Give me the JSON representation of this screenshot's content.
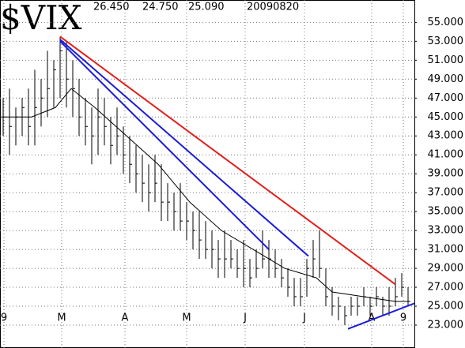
{
  "chart_data": {
    "type": "ohlc",
    "title": "$VIX",
    "header_values": [
      "26.450",
      "24.750",
      "25.090",
      "20090820"
    ],
    "xlim": [
      0,
      131
    ],
    "ylim": [
      22,
      57.2
    ],
    "xticks": [
      {
        "value": 1.25,
        "label": "9"
      },
      {
        "value": 19.5,
        "label": "M"
      },
      {
        "value": 39.5,
        "label": "A"
      },
      {
        "value": 59,
        "label": "M"
      },
      {
        "value": 77.5,
        "label": "J"
      },
      {
        "value": 96.25,
        "label": "J"
      },
      {
        "value": 117.5,
        "label": "A"
      },
      {
        "value": 127.5,
        "label": "9"
      }
    ],
    "yticks": [
      {
        "value": 23,
        "label": "23.000"
      },
      {
        "value": 25,
        "label": "25.000"
      },
      {
        "value": 27,
        "label": "27.000"
      },
      {
        "value": 29,
        "label": "29.000"
      },
      {
        "value": 31,
        "label": "31.000"
      },
      {
        "value": 33,
        "label": "33.000"
      },
      {
        "value": 35,
        "label": "35.000"
      },
      {
        "value": 37,
        "label": "37.000"
      },
      {
        "value": 39,
        "label": "39.000"
      },
      {
        "value": 41,
        "label": "41.000"
      },
      {
        "value": 43,
        "label": "43.000"
      },
      {
        "value": 45,
        "label": "45.000"
      },
      {
        "value": 47,
        "label": "47.000"
      },
      {
        "value": 49,
        "label": "49.000"
      },
      {
        "value": 51,
        "label": "51.000"
      },
      {
        "value": 53,
        "label": "53.000"
      },
      {
        "value": 55,
        "label": "55.000"
      }
    ],
    "grid": true,
    "bar_color": "#000000",
    "bars": {
      "x": [
        1,
        3,
        5,
        7,
        9,
        11,
        13,
        15,
        17,
        19,
        21,
        23,
        25,
        27,
        29,
        31,
        33,
        35,
        37,
        39,
        41,
        43,
        45,
        47,
        49,
        51,
        53,
        55,
        57,
        59,
        61,
        63,
        65,
        67,
        69,
        71,
        73,
        75,
        77,
        79,
        81,
        83,
        85,
        87,
        89,
        91,
        93,
        95,
        97,
        99,
        101,
        103,
        105,
        107,
        109,
        111,
        113,
        115,
        117,
        119,
        121,
        123,
        125,
        127,
        129
      ],
      "high": [
        47,
        48,
        46,
        47,
        48,
        50,
        49,
        52,
        51,
        53.5,
        53,
        51,
        49,
        47,
        46,
        48,
        47,
        45,
        46,
        44,
        43,
        42,
        41,
        40,
        41,
        40,
        38,
        37,
        38,
        36,
        35,
        35,
        34,
        33,
        32,
        33,
        32,
        31,
        32,
        30,
        31,
        33,
        32,
        31,
        30,
        29,
        28,
        28,
        30,
        32,
        33,
        29,
        27,
        26,
        25,
        26,
        26,
        27,
        26,
        27,
        26,
        27,
        28,
        28.5,
        27
      ],
      "low": [
        43,
        41,
        42,
        43,
        42,
        42,
        44,
        45,
        46,
        47,
        46,
        45,
        43,
        42,
        40,
        41,
        42,
        40,
        41,
        39,
        38,
        37,
        36,
        35,
        36,
        34,
        34,
        33,
        33,
        32,
        31,
        30,
        30,
        29,
        28,
        28,
        29,
        28,
        27,
        27,
        28,
        29,
        28,
        28,
        27,
        26,
        25,
        25,
        26,
        28,
        28,
        25,
        24,
        23.5,
        23,
        24,
        24,
        25,
        24,
        25,
        24,
        24,
        25,
        26,
        25
      ],
      "close": [
        45,
        44,
        45,
        46,
        44,
        46,
        47,
        48,
        50,
        52,
        49,
        48,
        45,
        44,
        43,
        45,
        44,
        42,
        43,
        41,
        40,
        39,
        38,
        37,
        38,
        36,
        36,
        35,
        34,
        34,
        33,
        32,
        31,
        31,
        30,
        30,
        30,
        29,
        29,
        28,
        29,
        30,
        30,
        29,
        28,
        27,
        26,
        26,
        29,
        30,
        29,
        26,
        25,
        25,
        24,
        25,
        25,
        26,
        25,
        26,
        25,
        25,
        26,
        27,
        25.5
      ]
    },
    "moving_average": {
      "color": "#000000",
      "x": [
        0,
        10,
        17.5,
        22.5,
        30,
        40,
        50,
        60,
        70,
        80,
        90,
        100,
        105,
        115,
        125,
        129
      ],
      "values": [
        45,
        45,
        46,
        48,
        46,
        43,
        40,
        36,
        33,
        31,
        29,
        28,
        26.5,
        26,
        25.5,
        25.5
      ]
    },
    "trendlines": [
      {
        "color": "#e0201c",
        "x": [
          19,
          125
        ],
        "values": [
          53.5,
          27.3
        ]
      },
      {
        "color": "#1c1cd8",
        "x": [
          19,
          97.5
        ],
        "values": [
          53.2,
          30.3
        ]
      },
      {
        "color": "#1c1cd8",
        "x": [
          19,
          85
        ],
        "values": [
          53,
          31
        ]
      },
      {
        "color": "#1c1cd8",
        "x": [
          110,
          131
        ],
        "values": [
          22.6,
          25.3
        ]
      }
    ]
  }
}
